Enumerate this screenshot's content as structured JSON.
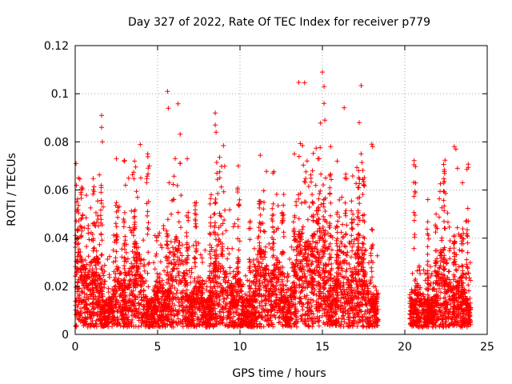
{
  "chart_data": {
    "type": "scatter",
    "title": "Day 327 of 2022, Rate Of TEC Index for receiver p779",
    "xlabel": "GPS time / hours",
    "ylabel": "ROTI / TECUs",
    "xlim": [
      0,
      25
    ],
    "ylim": [
      0,
      0.12
    ],
    "x_ticks": [
      0,
      5,
      10,
      15,
      20,
      25
    ],
    "y_ticks": [
      0,
      0.02,
      0.04,
      0.06,
      0.08,
      0.1,
      0.12
    ],
    "x_tick_labels": [
      "0",
      "5",
      "10",
      "15",
      "20",
      "25"
    ],
    "y_tick_labels": [
      "0",
      "0.02",
      "0.04",
      "0.06",
      "0.08",
      "0.1",
      "0.12"
    ],
    "grid": true,
    "marker": "+",
    "color": "#ff0000",
    "gaps": [
      [
        18.4,
        20.3
      ]
    ],
    "series": [
      {
        "name": "ROTI p779",
        "description_points": "peaks",
        "x": [
          0.05,
          0.1,
          0.1,
          0.2,
          0.3,
          1.1,
          1.6,
          1.6,
          1.65,
          1.7,
          2.5,
          3.6,
          4.4,
          4.5,
          5.6,
          5.65,
          5.7,
          6.8,
          8.5,
          8.5,
          8.55,
          9.9,
          12.0,
          13.3,
          14.4,
          14.8,
          15.0,
          15.1,
          15.1,
          15.15,
          15.2,
          15.5,
          15.9,
          17.2,
          17.5,
          18.0,
          18.05,
          21.4,
          21.9,
          23.0,
          23.1,
          23.2,
          23.5,
          23.7
        ],
        "y": [
          0.071,
          0.055,
          0.04,
          0.065,
          0.045,
          0.06,
          0.091,
          0.086,
          0.08,
          0.053,
          0.073,
          0.072,
          0.075,
          0.07,
          0.101,
          0.094,
          0.063,
          0.073,
          0.092,
          0.087,
          0.084,
          0.07,
          0.067,
          0.075,
          0.068,
          0.073,
          0.109,
          0.103,
          0.096,
          0.089,
          0.065,
          0.078,
          0.072,
          0.068,
          0.062,
          0.079,
          0.078,
          0.056,
          0.05,
          0.078,
          0.077,
          0.069,
          0.063,
          0.047
        ]
      }
    ]
  }
}
